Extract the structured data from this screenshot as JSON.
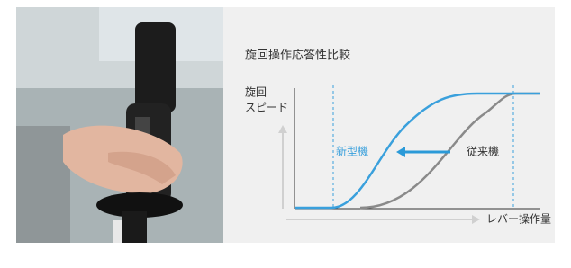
{
  "diagram": {
    "title": "旋回操作応答性比較",
    "y_axis_label": [
      "旋回",
      "スピード"
    ],
    "x_axis_label": "レバー操作量",
    "curves": {
      "new": "新型機",
      "old": "従来機"
    }
  }
}
